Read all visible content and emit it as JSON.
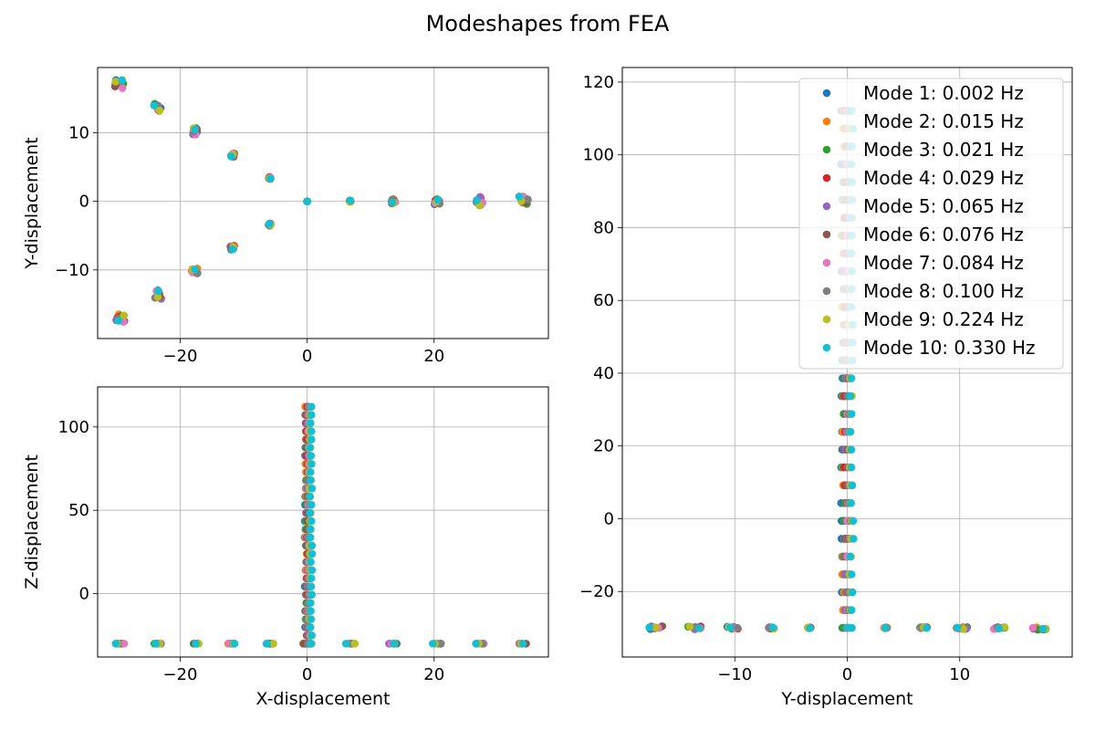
{
  "figure": {
    "title": "Modeshapes from FEA"
  },
  "colors": [
    "#1f77b4",
    "#ff7f0e",
    "#2ca02c",
    "#d62728",
    "#9467bd",
    "#8c564b",
    "#e377c2",
    "#7f7f7f",
    "#bcbd22",
    "#17becf"
  ],
  "chart_data": [
    {
      "type": "scatter",
      "xlabel": "",
      "ylabel": "Y-displacement",
      "xlim": [
        -33,
        38
      ],
      "ylim": [
        -20,
        19.5
      ],
      "xticks": [
        -20,
        0,
        20
      ],
      "yticks": [
        -10,
        0,
        10
      ],
      "grid": true,
      "description": "X-Y view of three blades plus hub for each mode",
      "series_base": {
        "blade_up": {
          "x": [
            0,
            -5.9,
            -11.8,
            -17.7,
            -23.6,
            -29.5
          ],
          "y": [
            0,
            3.4,
            6.8,
            10.2,
            13.6,
            17.0
          ]
        },
        "blade_down": {
          "x": [
            0,
            -5.9,
            -11.8,
            -17.7,
            -23.6,
            -29.5
          ],
          "y": [
            0,
            -3.4,
            -6.8,
            -10.2,
            -13.6,
            -17.0
          ]
        },
        "blade_right": {
          "x": [
            0,
            6.8,
            13.6,
            20.4,
            27.2,
            34.0
          ],
          "y": [
            0,
            0,
            0,
            0,
            0,
            0
          ]
        }
      }
    },
    {
      "type": "scatter",
      "xlabel": "X-displacement",
      "ylabel": "Z-displacement",
      "xlim": [
        -33,
        38
      ],
      "ylim": [
        -38,
        124
      ],
      "xticks": [
        -20,
        0,
        20
      ],
      "yticks": [
        0,
        50,
        100
      ],
      "grid": true,
      "description": "X-Z view of tower and blades for each mode",
      "tower_z": [
        -30,
        116
      ],
      "blade_z": -30,
      "blade_x": [
        -29.5,
        -23.6,
        -17.7,
        -11.8,
        -5.9,
        0,
        6.8,
        13.6,
        20.4,
        27.2,
        34.0
      ]
    },
    {
      "type": "scatter",
      "xlabel": "Y-displacement",
      "ylabel": "",
      "xlim": [
        -20,
        20
      ],
      "ylim": [
        -38,
        124
      ],
      "xticks": [
        -10,
        0,
        10
      ],
      "yticks": [
        -20,
        0,
        20,
        40,
        60,
        80,
        100,
        120
      ],
      "grid": true,
      "legend_position": "upper-right",
      "description": "Y-Z view of tower and blades for each mode",
      "tower_z": [
        -30,
        116
      ],
      "blade_z": -30,
      "blade_y": [
        -17.0,
        -13.6,
        -10.2,
        -6.8,
        -3.4,
        0,
        3.4,
        6.8,
        10.2,
        13.6,
        17.0
      ],
      "series": [
        {
          "name": "Mode  1: 0.002 Hz"
        },
        {
          "name": "Mode  2: 0.015 Hz"
        },
        {
          "name": "Mode  3: 0.021 Hz"
        },
        {
          "name": "Mode  4: 0.029 Hz"
        },
        {
          "name": "Mode  5: 0.065 Hz"
        },
        {
          "name": "Mode  6: 0.076 Hz"
        },
        {
          "name": "Mode  7: 0.084 Hz"
        },
        {
          "name": "Mode  8: 0.100 Hz"
        },
        {
          "name": "Mode  9: 0.224 Hz"
        },
        {
          "name": "Mode 10: 0.330 Hz"
        }
      ]
    }
  ]
}
